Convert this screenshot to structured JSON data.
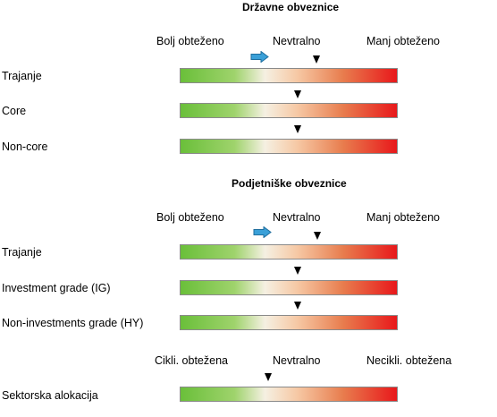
{
  "section1": {
    "title": "Državne obveznice",
    "scale": {
      "left": "Bolj obteženo",
      "mid": "Nevtralno",
      "right": "Manj obteženo"
    },
    "rows": [
      {
        "label": "Trajanje",
        "marker": "neutral-right",
        "arrow": "right"
      },
      {
        "label": "Core",
        "marker": "neutral"
      },
      {
        "label": "Non-core",
        "marker": "neutral"
      }
    ]
  },
  "section2": {
    "title": "Podjetniške obveznice",
    "scale": {
      "left": "Bolj obteženo",
      "mid": "Nevtralno",
      "right": "Manj obteženo"
    },
    "rows": [
      {
        "label": "Trajanje",
        "marker": "neutral-right",
        "arrow": "right"
      },
      {
        "label": "Investment grade (IG)",
        "marker": "neutral"
      },
      {
        "label": "Non-investments grade (HY)",
        "marker": "neutral"
      }
    ]
  },
  "section3": {
    "scale": {
      "left": "Cikli. obtežena",
      "mid": "Nevtralno",
      "right": "Necikli. obtežena"
    },
    "rows": [
      {
        "label": "Sektorska alokacija",
        "marker": "left-of-neutral"
      }
    ]
  },
  "colors": {
    "gradient_left": "#6abf3a",
    "gradient_mid": "#f5f0e2",
    "gradient_right": "#e8181b",
    "arrow": "#3aa0d8"
  },
  "icons": {
    "arrow": "right-arrow-icon",
    "marker": "triangle-down-icon"
  }
}
